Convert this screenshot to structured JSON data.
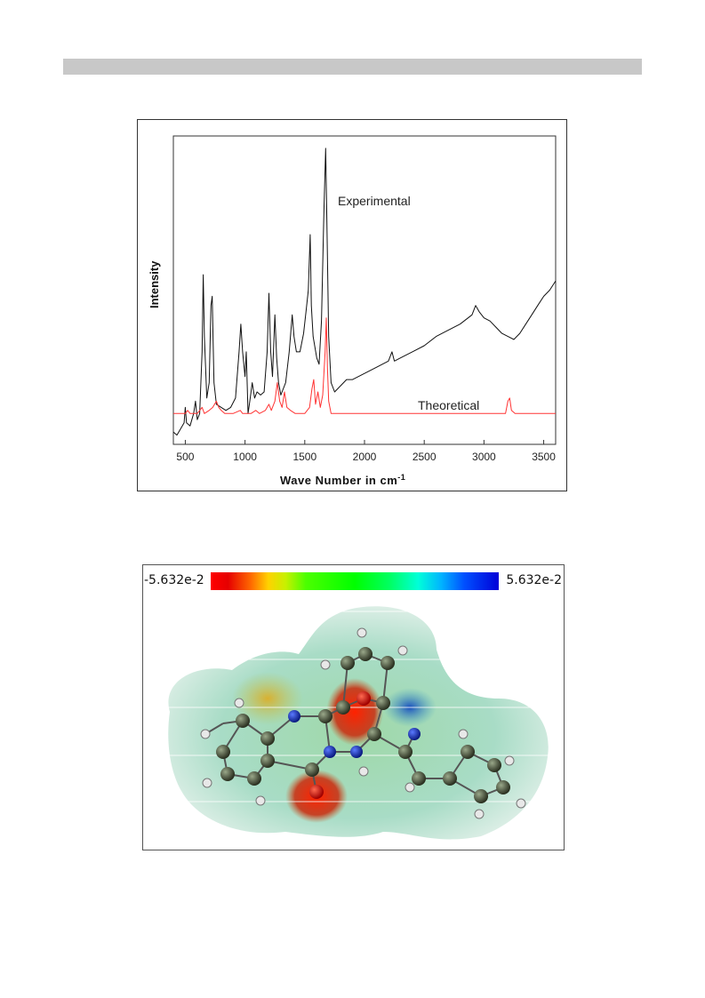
{
  "chart_data": {
    "type": "line",
    "xlabel": "Wave Number in cm",
    "xlabel_superscript": "-1",
    "ylabel": "Intensity",
    "xlim": [
      400,
      3600
    ],
    "ylim": [
      0,
      1
    ],
    "x_ticks": [
      "500",
      "1000",
      "1500",
      "2000",
      "2500",
      "3000",
      "3500"
    ],
    "series": [
      {
        "name": "Experimental",
        "color": "#111111",
        "points": [
          [
            400,
            0.04
          ],
          [
            430,
            0.03
          ],
          [
            460,
            0.05
          ],
          [
            490,
            0.07
          ],
          [
            500,
            0.12
          ],
          [
            510,
            0.07
          ],
          [
            540,
            0.06
          ],
          [
            570,
            0.1
          ],
          [
            585,
            0.14
          ],
          [
            600,
            0.08
          ],
          [
            620,
            0.1
          ],
          [
            640,
            0.3
          ],
          [
            650,
            0.55
          ],
          [
            660,
            0.35
          ],
          [
            680,
            0.15
          ],
          [
            700,
            0.2
          ],
          [
            715,
            0.45
          ],
          [
            725,
            0.48
          ],
          [
            740,
            0.2
          ],
          [
            760,
            0.13
          ],
          [
            800,
            0.12
          ],
          [
            840,
            0.11
          ],
          [
            880,
            0.12
          ],
          [
            920,
            0.15
          ],
          [
            950,
            0.3
          ],
          [
            965,
            0.39
          ],
          [
            980,
            0.3
          ],
          [
            1000,
            0.22
          ],
          [
            1010,
            0.3
          ],
          [
            1025,
            0.1
          ],
          [
            1040,
            0.14
          ],
          [
            1060,
            0.2
          ],
          [
            1080,
            0.15
          ],
          [
            1100,
            0.17
          ],
          [
            1130,
            0.16
          ],
          [
            1160,
            0.17
          ],
          [
            1185,
            0.3
          ],
          [
            1200,
            0.49
          ],
          [
            1215,
            0.3
          ],
          [
            1230,
            0.22
          ],
          [
            1250,
            0.42
          ],
          [
            1265,
            0.28
          ],
          [
            1280,
            0.2
          ],
          [
            1300,
            0.16
          ],
          [
            1340,
            0.2
          ],
          [
            1370,
            0.3
          ],
          [
            1395,
            0.42
          ],
          [
            1410,
            0.35
          ],
          [
            1430,
            0.3
          ],
          [
            1460,
            0.3
          ],
          [
            1490,
            0.36
          ],
          [
            1510,
            0.43
          ],
          [
            1530,
            0.5
          ],
          [
            1545,
            0.68
          ],
          [
            1555,
            0.45
          ],
          [
            1570,
            0.35
          ],
          [
            1600,
            0.28
          ],
          [
            1620,
            0.26
          ],
          [
            1640,
            0.4
          ],
          [
            1660,
            0.75
          ],
          [
            1675,
            0.96
          ],
          [
            1685,
            0.72
          ],
          [
            1700,
            0.35
          ],
          [
            1720,
            0.2
          ],
          [
            1750,
            0.17
          ],
          [
            1800,
            0.19
          ],
          [
            1850,
            0.21
          ],
          [
            1900,
            0.21
          ],
          [
            2000,
            0.23
          ],
          [
            2100,
            0.25
          ],
          [
            2200,
            0.27
          ],
          [
            2230,
            0.3
          ],
          [
            2250,
            0.27
          ],
          [
            2300,
            0.28
          ],
          [
            2400,
            0.3
          ],
          [
            2500,
            0.32
          ],
          [
            2600,
            0.35
          ],
          [
            2700,
            0.37
          ],
          [
            2800,
            0.39
          ],
          [
            2900,
            0.42
          ],
          [
            2930,
            0.45
          ],
          [
            2960,
            0.43
          ],
          [
            3000,
            0.41
          ],
          [
            3050,
            0.4
          ],
          [
            3100,
            0.38
          ],
          [
            3150,
            0.36
          ],
          [
            3200,
            0.35
          ],
          [
            3250,
            0.34
          ],
          [
            3300,
            0.36
          ],
          [
            3350,
            0.39
          ],
          [
            3400,
            0.42
          ],
          [
            3450,
            0.45
          ],
          [
            3500,
            0.48
          ],
          [
            3550,
            0.5
          ],
          [
            3600,
            0.53
          ]
        ]
      },
      {
        "name": "Theoretical",
        "color": "#ff3333",
        "points": [
          [
            400,
            0.1
          ],
          [
            500,
            0.1
          ],
          [
            520,
            0.11
          ],
          [
            540,
            0.1
          ],
          [
            600,
            0.1
          ],
          [
            640,
            0.12
          ],
          [
            660,
            0.1
          ],
          [
            700,
            0.11
          ],
          [
            730,
            0.12
          ],
          [
            760,
            0.14
          ],
          [
            780,
            0.12
          ],
          [
            800,
            0.11
          ],
          [
            830,
            0.1
          ],
          [
            900,
            0.1
          ],
          [
            960,
            0.11
          ],
          [
            980,
            0.1
          ],
          [
            1050,
            0.1
          ],
          [
            1090,
            0.11
          ],
          [
            1120,
            0.1
          ],
          [
            1170,
            0.11
          ],
          [
            1200,
            0.13
          ],
          [
            1220,
            0.11
          ],
          [
            1250,
            0.14
          ],
          [
            1270,
            0.2
          ],
          [
            1290,
            0.14
          ],
          [
            1310,
            0.12
          ],
          [
            1330,
            0.17
          ],
          [
            1350,
            0.12
          ],
          [
            1380,
            0.11
          ],
          [
            1420,
            0.1
          ],
          [
            1500,
            0.1
          ],
          [
            1540,
            0.12
          ],
          [
            1560,
            0.18
          ],
          [
            1575,
            0.21
          ],
          [
            1590,
            0.13
          ],
          [
            1610,
            0.17
          ],
          [
            1630,
            0.12
          ],
          [
            1650,
            0.16
          ],
          [
            1670,
            0.3
          ],
          [
            1680,
            0.41
          ],
          [
            1690,
            0.25
          ],
          [
            1700,
            0.14
          ],
          [
            1720,
            0.1
          ],
          [
            1800,
            0.1
          ],
          [
            2000,
            0.1
          ],
          [
            2500,
            0.1
          ],
          [
            3000,
            0.1
          ],
          [
            3180,
            0.1
          ],
          [
            3200,
            0.14
          ],
          [
            3215,
            0.15
          ],
          [
            3230,
            0.11
          ],
          [
            3260,
            0.1
          ],
          [
            3600,
            0.1
          ]
        ]
      }
    ],
    "annotations": [
      {
        "text": "Experimental",
        "x": 1900,
        "y": 0.86
      },
      {
        "text": "Theoretical",
        "x": 2750,
        "y": 0.13
      }
    ]
  },
  "mep_scale": {
    "min_label": "-5.632e-2",
    "max_label": "5.632e-2"
  }
}
